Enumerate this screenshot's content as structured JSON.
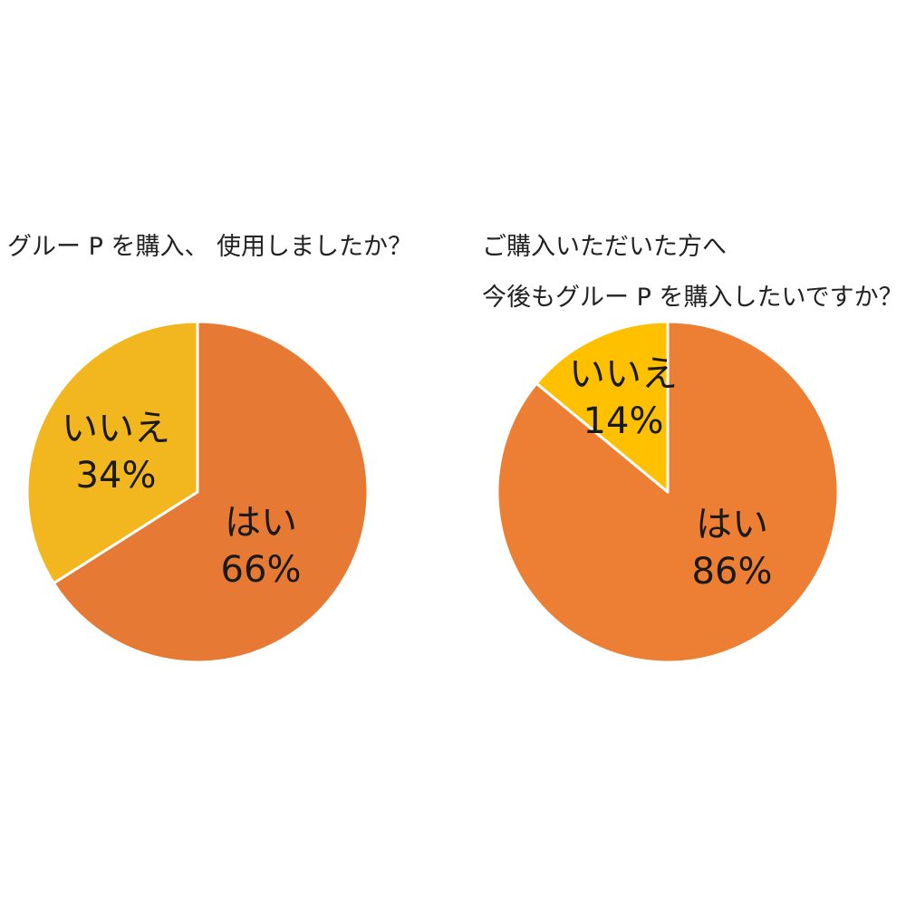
{
  "chart_data": [
    {
      "type": "pie",
      "title_lines": [
        "グルー P を購入、 使用しましたか？"
      ],
      "slices": [
        {
          "label": "はい",
          "value": 66,
          "value_text": "66%",
          "color": "#E67A35"
        },
        {
          "label": "いいえ",
          "value": 34,
          "value_text": "34%",
          "color": "#F2B71F"
        }
      ],
      "start_angle_deg": 0,
      "direction": "clockwise",
      "border_color": "#ffffff"
    },
    {
      "type": "pie",
      "title_lines": [
        "ご購入いただいた方へ",
        "今後もグルー P を購入したいですか？"
      ],
      "slices": [
        {
          "label": "はい",
          "value": 86,
          "value_text": "86%",
          "color": "#EC7F33"
        },
        {
          "label": "いいえ",
          "value": 14,
          "value_text": "14%",
          "color": "#FFC000"
        }
      ],
      "start_angle_deg": 0,
      "direction": "clockwise",
      "border_color": "#ffffff"
    }
  ]
}
